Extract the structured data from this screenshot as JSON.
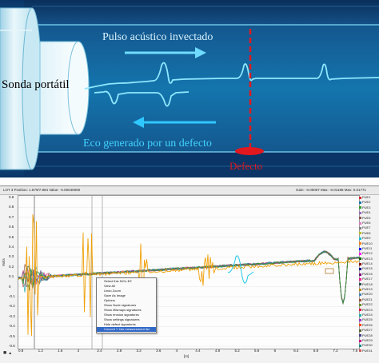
{
  "diagram": {
    "labels": {
      "probe": "Sonda portátil",
      "pulse": "Pulso acústico invectado",
      "echo": "Eco generado por un defecto",
      "defect": "Defecto"
    },
    "colors": {
      "pipe_dark": "#0a3a6e",
      "pipe_inner": "#0f6ea8",
      "wave": "#7fe7ff",
      "pulse_text": "#cfeeff",
      "echo_text": "#43d4ff",
      "defect_red": "#e2181f",
      "echo_arrow": "#2fc7ff"
    }
  },
  "scope": {
    "header": {
      "left": "LOT 3 Position: 1.879/7.894  Value: -0.00040000",
      "right": "Gain: -0.00007   Max: -0.01196   Max: 0.01771"
    },
    "y_label": "Volts",
    "x_label": "[m]",
    "y_ticks": [
      "0.9",
      "0.8",
      "0.7",
      "0.6",
      "0.5",
      "0.4",
      "0.3",
      "0.2",
      "0.1",
      "0",
      "-0.1",
      "-0.2",
      "-0.3",
      "-0.4",
      "-0.5",
      "-0.6"
    ],
    "x_ticks": [
      "0.8",
      "1",
      "1.2",
      "1.4",
      "1.6",
      "1.8",
      "2",
      "2.2",
      "2.4",
      "2.6",
      "2.8",
      "3",
      "3.2",
      "3.4",
      "3.6",
      "3.8",
      "4",
      "4.2",
      "4.4",
      "4.6",
      "4.8",
      "5",
      "5.2",
      "5.4",
      "5.6",
      "5.8",
      "6",
      "6.2",
      "6.4",
      "6.6",
      "6.8",
      "7",
      "7.2",
      "7.4",
      "7.6"
    ],
    "context_menu": [
      "Select this NCU-EZ",
      "View All",
      "Undo Zoom",
      "Save As Image",
      "Options",
      "Show Node signatures",
      "Show Mismaps signatures",
      "Show erosion signatures",
      "Show settings signatures",
      "Hide defect signatures",
      "Convert Y into measurement list"
    ],
    "context_menu_selected": 10,
    "legend": [
      "PUE1",
      "PUE2",
      "PUE3",
      "PUE4",
      "PUE5",
      "PUE6",
      "PUE7",
      "PUE8",
      "PUE9",
      "PUE10",
      "PUE11",
      "PUE12",
      "PUE13",
      "PUE14",
      "PUE15",
      "PUE16",
      "PUE17",
      "PUE18",
      "PUE19",
      "PUE20",
      "PUE21",
      "PUE22",
      "PUE23",
      "PUE24",
      "PUE25",
      "PUE26",
      "PUE27",
      "PUE28",
      "PUE29",
      "PUE30",
      "PUE31"
    ],
    "legend_colors": [
      "#d62728",
      "#1f77b4",
      "#2ca02c",
      "#9467bd",
      "#8c564b",
      "#e377c2",
      "#7f7f7f",
      "#bcbd22",
      "#17becf",
      "#ff7f0e",
      "#0000ff",
      "#ff00ff",
      "#006400",
      "#8b0000",
      "#00008b",
      "#800080",
      "#ff1493",
      "#2f4f4f",
      "#b8860b",
      "#4682b4",
      "#a0522d",
      "#6b8e23",
      "#dc143c",
      "#20b2aa",
      "#9932cc",
      "#ff4500",
      "#556b2f",
      "#483d8b",
      "#c71585",
      "#008b8b",
      "#cd5c5c"
    ],
    "trace_colors": {
      "orange": "#f0a10a",
      "purple": "#4b2c86",
      "red": "#c0392b",
      "teal": "#1aa3a3",
      "cyan": "#22c8e6",
      "green": "#2e8b57",
      "pink": "#e0459a",
      "gray_marker": "#555555"
    }
  }
}
